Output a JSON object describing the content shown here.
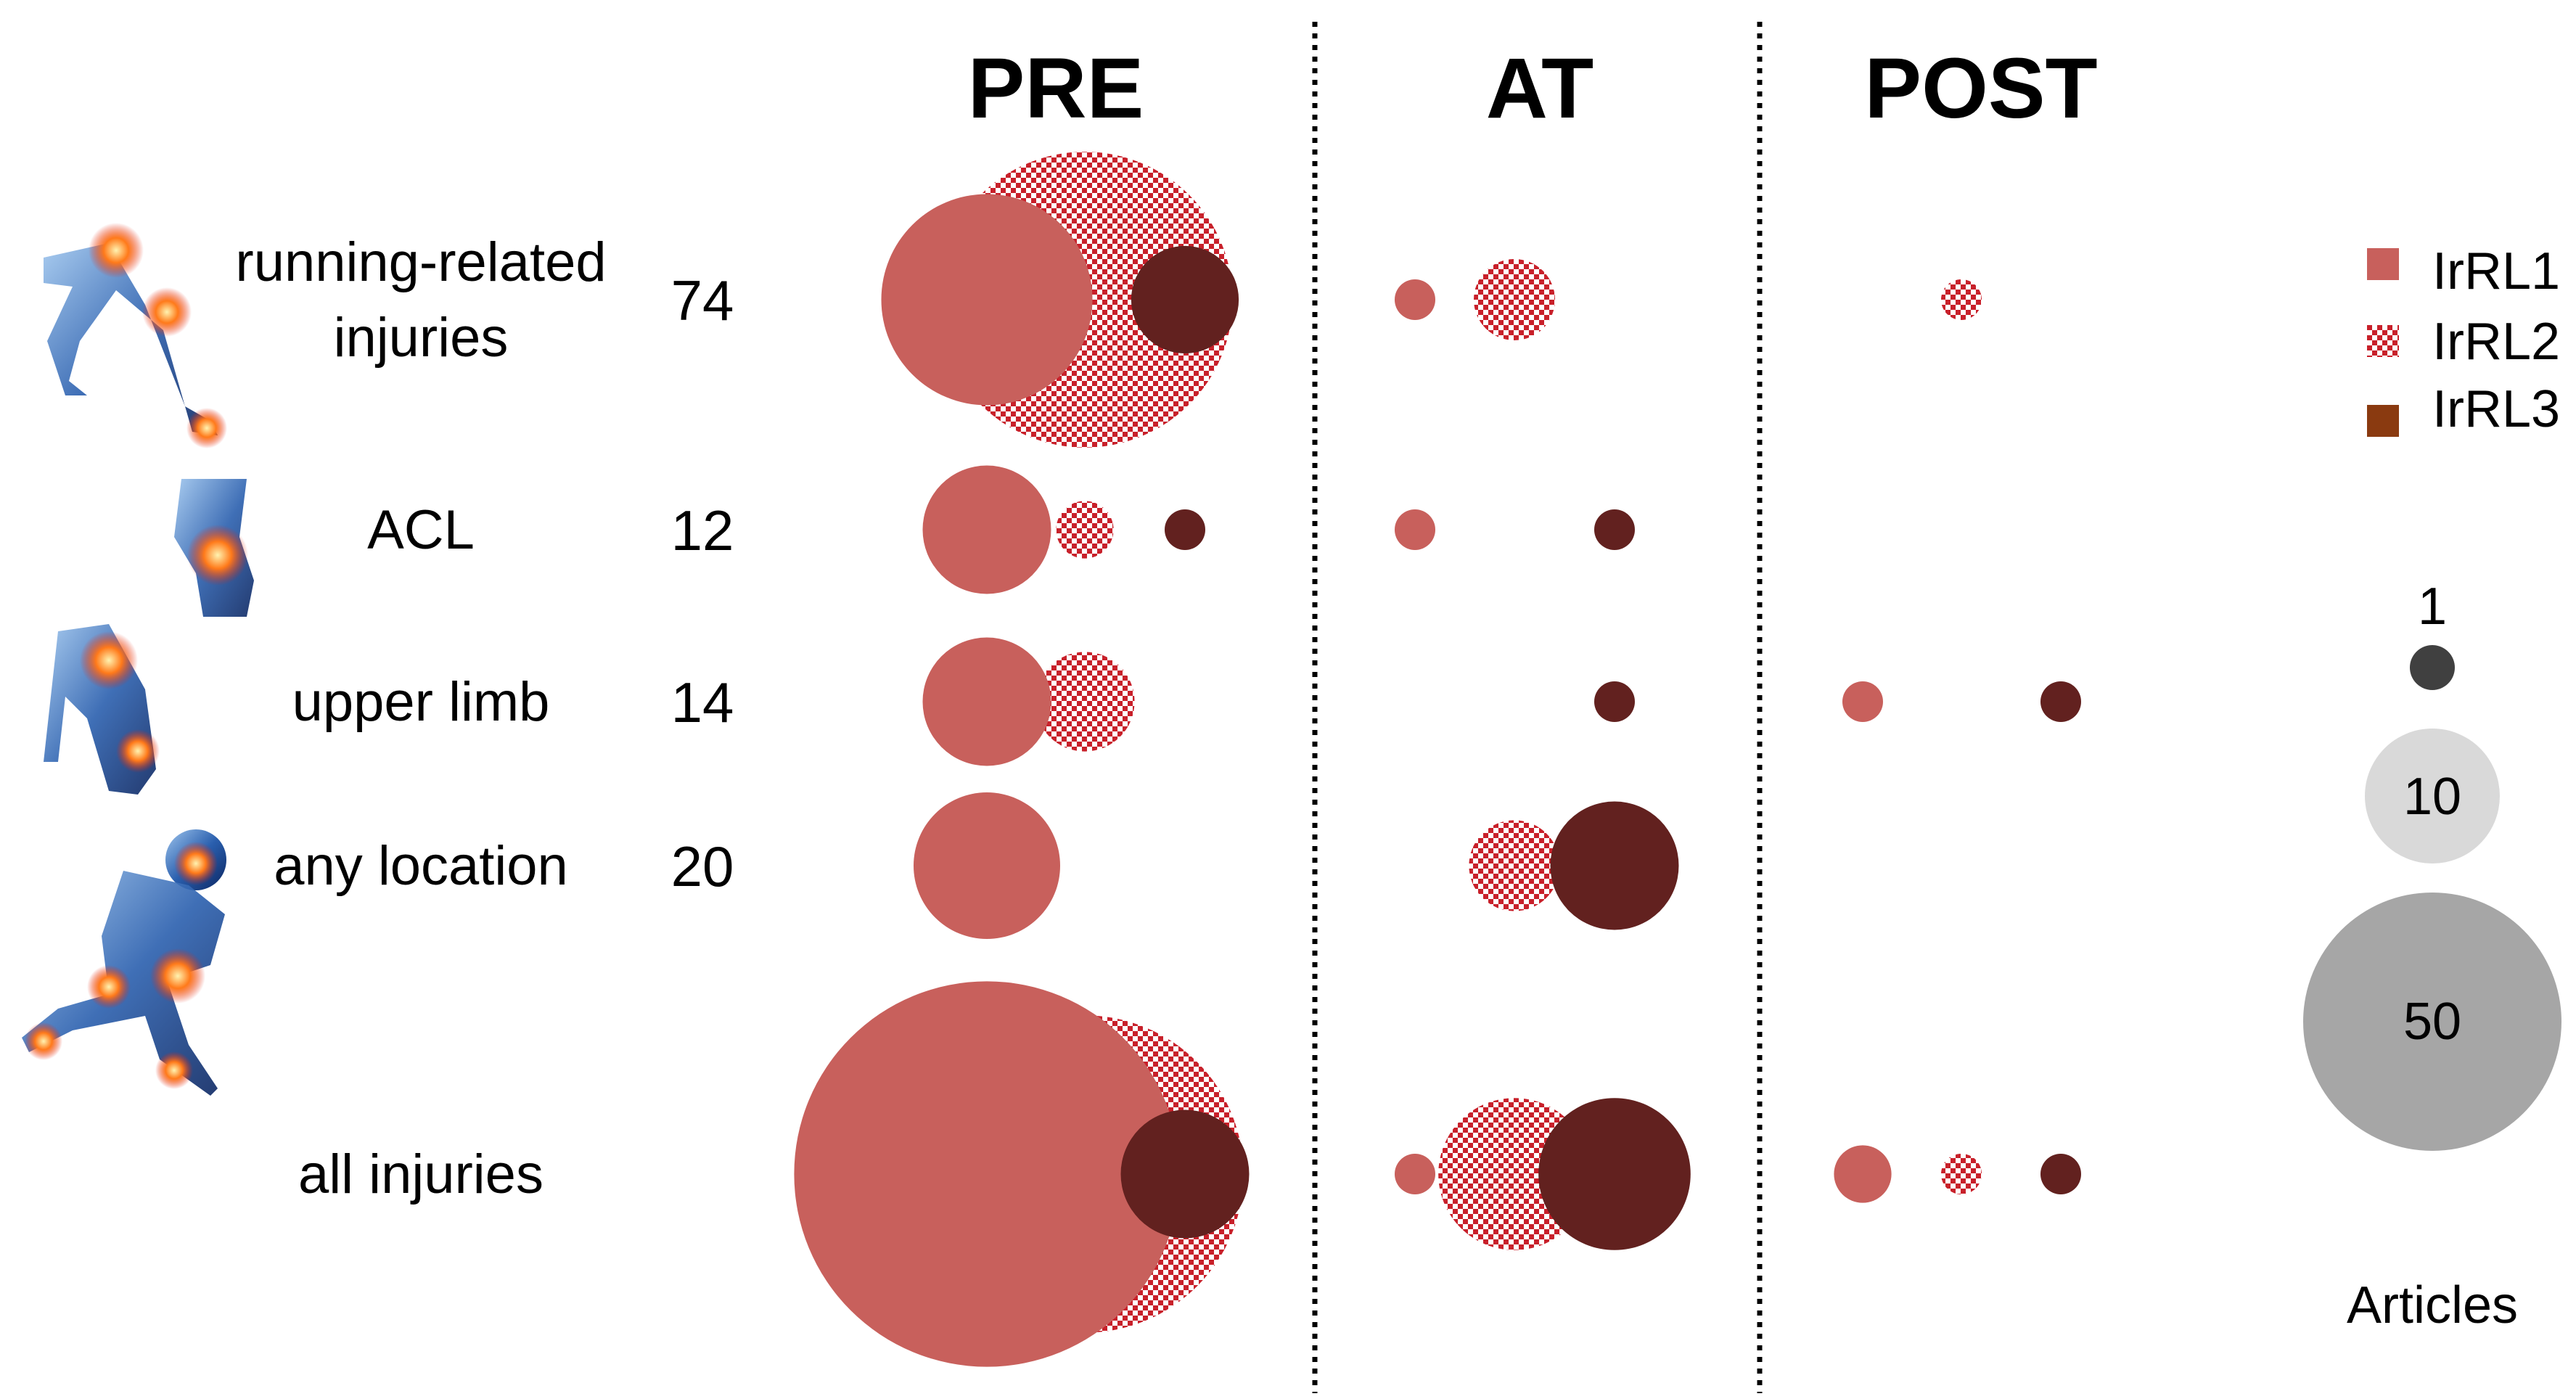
{
  "chart_data": {
    "type": "bubble-matrix",
    "columns": [
      "PRE",
      "AT",
      "POST"
    ],
    "rows": [
      {
        "label": "running-related injuries",
        "label_lines": [
          "running-related",
          "injuries"
        ],
        "total": "74",
        "icon": "running-legs-injury-icon"
      },
      {
        "label": "ACL",
        "label_lines": [
          "ACL"
        ],
        "total": "12",
        "icon": "knee-acl-injury-icon"
      },
      {
        "label": "upper limb",
        "label_lines": [
          "upper limb"
        ],
        "total": "14",
        "icon": "arm-shoulder-injury-icon"
      },
      {
        "label": "any location",
        "label_lines": [
          "any location"
        ],
        "total": "20",
        "icon": "kneeling-body-injury-icon"
      },
      {
        "label": "all injuries",
        "label_lines": [
          "all injuries"
        ],
        "total": "",
        "icon": ""
      }
    ],
    "series": [
      {
        "name": "IrRL1",
        "color": "#c8605c",
        "pattern": "solid"
      },
      {
        "name": "IrRL2",
        "color": "#c8202a",
        "pattern": "checkered"
      },
      {
        "name": "IrRL3",
        "color": "#62211f",
        "pattern": "solid"
      }
    ],
    "points": [
      {
        "row": 0,
        "column": "PRE",
        "series": "IrRL1",
        "articles": 27
      },
      {
        "row": 0,
        "column": "PRE",
        "series": "IrRL2",
        "articles": 53
      },
      {
        "row": 0,
        "column": "PRE",
        "series": "IrRL3",
        "articles": 7
      },
      {
        "row": 0,
        "column": "AT",
        "series": "IrRL1",
        "articles": 1
      },
      {
        "row": 0,
        "column": "AT",
        "series": "IrRL2",
        "articles": 4
      },
      {
        "row": 0,
        "column": "POST",
        "series": "IrRL2",
        "articles": 1
      },
      {
        "row": 1,
        "column": "PRE",
        "series": "IrRL1",
        "articles": 10
      },
      {
        "row": 1,
        "column": "PRE",
        "series": "IrRL2",
        "articles": 2
      },
      {
        "row": 1,
        "column": "PRE",
        "series": "IrRL3",
        "articles": 1
      },
      {
        "row": 1,
        "column": "AT",
        "series": "IrRL1",
        "articles": 1
      },
      {
        "row": 1,
        "column": "AT",
        "series": "IrRL3",
        "articles": 1
      },
      {
        "row": 2,
        "column": "PRE",
        "series": "IrRL1",
        "articles": 10
      },
      {
        "row": 2,
        "column": "PRE",
        "series": "IrRL2",
        "articles": 6
      },
      {
        "row": 2,
        "column": "AT",
        "series": "IrRL3",
        "articles": 1
      },
      {
        "row": 2,
        "column": "POST",
        "series": "IrRL1",
        "articles": 1
      },
      {
        "row": 2,
        "column": "POST",
        "series": "IrRL3",
        "articles": 1
      },
      {
        "row": 3,
        "column": "PRE",
        "series": "IrRL1",
        "articles": 13
      },
      {
        "row": 3,
        "column": "AT",
        "series": "IrRL2",
        "articles": 5
      },
      {
        "row": 3,
        "column": "AT",
        "series": "IrRL3",
        "articles": 10
      },
      {
        "row": 4,
        "column": "PRE",
        "series": "IrRL1",
        "articles": 90
      },
      {
        "row": 4,
        "column": "PRE",
        "series": "IrRL2",
        "articles": 61
      },
      {
        "row": 4,
        "column": "PRE",
        "series": "IrRL3",
        "articles": 10
      },
      {
        "row": 4,
        "column": "AT",
        "series": "IrRL1",
        "articles": 1
      },
      {
        "row": 4,
        "column": "AT",
        "series": "IrRL2",
        "articles": 14
      },
      {
        "row": 4,
        "column": "AT",
        "series": "IrRL3",
        "articles": 14
      },
      {
        "row": 4,
        "column": "POST",
        "series": "IrRL1",
        "articles": 2
      },
      {
        "row": 4,
        "column": "POST",
        "series": "IrRL2",
        "articles": 1
      },
      {
        "row": 4,
        "column": "POST",
        "series": "IrRL3",
        "articles": 1
      }
    ],
    "size_legend": {
      "title": "Articles",
      "values": [
        1,
        10,
        50
      ],
      "labels": [
        "1",
        "10",
        "50"
      ]
    },
    "legend_position": "right",
    "grid": false,
    "colors": {
      "size_1": "#404040",
      "size_10": "#d9d9d9",
      "size_50": "#a6a6a6",
      "divider": "#000000"
    }
  }
}
